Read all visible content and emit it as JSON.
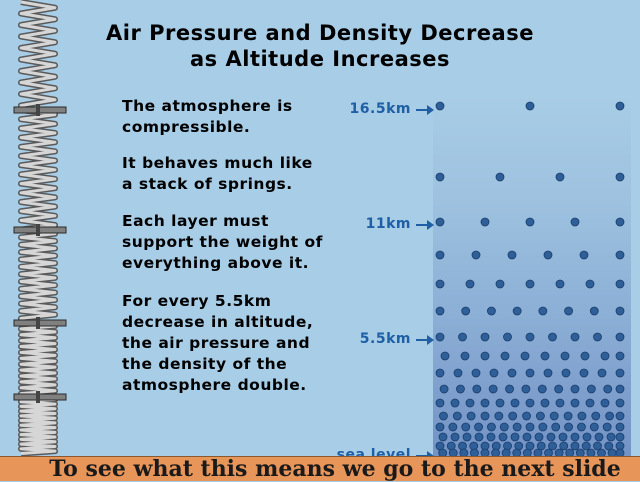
{
  "title_line1": "Air Pressure and Density Decrease",
  "title_line2": "as Altitude Increases",
  "paragraphs": [
    [
      "The atmosphere is",
      "compressible."
    ],
    [
      "It behaves much like",
      "a stack of springs."
    ],
    [
      "Each layer must",
      "support the weight of",
      "everything above it."
    ],
    [
      "For every 5.5km",
      "decrease in altitude,",
      "the air pressure and",
      "the density of the",
      "atmosphere double."
    ]
  ],
  "altitude_labels": [
    "16.5km",
    "11km",
    "5.5km",
    "sea level"
  ],
  "footer": "To see what this means we go to the next slide",
  "colors": {
    "background": "#a8cde6",
    "label_blue": "#1e5fa6",
    "dot": "#2f5f98",
    "footer": "#e8955a"
  },
  "icons": [
    "spring-stack-icon"
  ]
}
